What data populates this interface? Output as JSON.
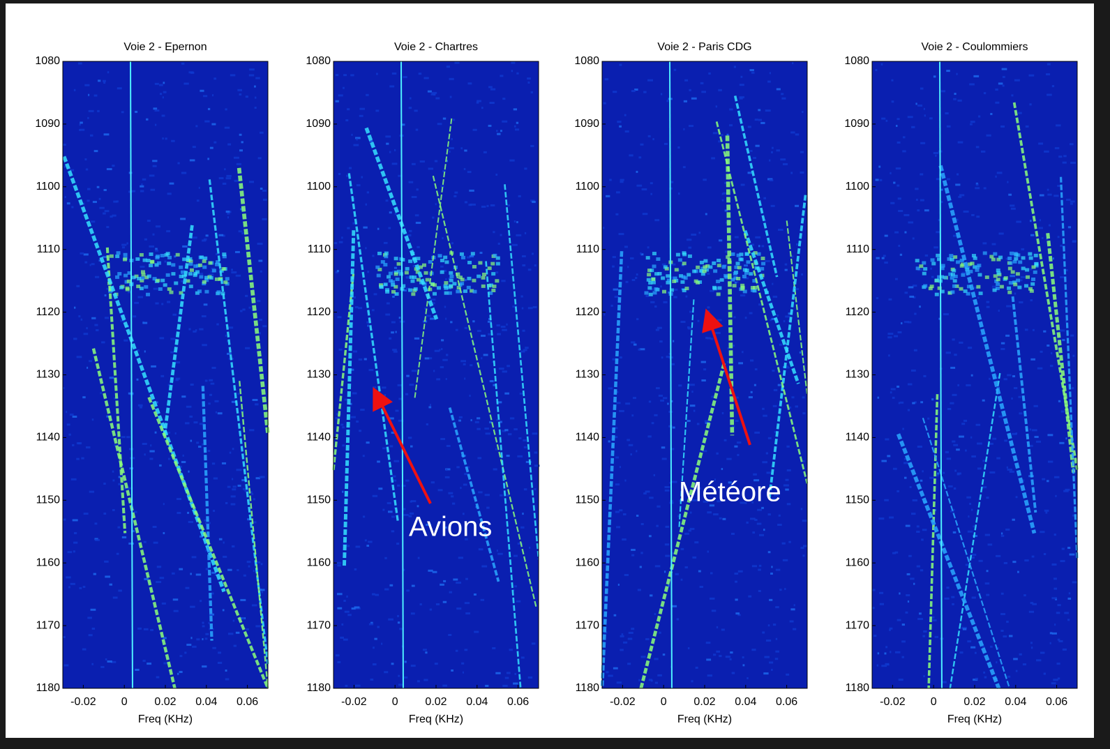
{
  "chart_data": [
    {
      "type": "spectrogram",
      "title": "Voie 2 - Epernon",
      "x_label": "Freq (KHz)",
      "xlim": [
        -0.03,
        0.07
      ],
      "xticks": [
        -0.02,
        0,
        0.02,
        0.04,
        0.06
      ],
      "ylim": [
        1080,
        1180
      ],
      "yticks": [
        1080,
        1090,
        1100,
        1110,
        1120,
        1130,
        1140,
        1150,
        1160,
        1170,
        1180
      ],
      "y_reversed": true
    },
    {
      "type": "spectrogram",
      "title": "Voie 2 - Chartres",
      "x_label": "Freq (KHz)",
      "xlim": [
        -0.03,
        0.07
      ],
      "xticks": [
        -0.02,
        0,
        0.02,
        0.04,
        0.06
      ],
      "ylim": [
        1080,
        1180
      ],
      "yticks": [
        1080,
        1090,
        1100,
        1110,
        1120,
        1130,
        1140,
        1150,
        1160,
        1170,
        1180
      ],
      "y_reversed": true,
      "annotation": "Avions"
    },
    {
      "type": "spectrogram",
      "title": "Voie 2 - Paris CDG",
      "x_label": "Freq (KHz)",
      "xlim": [
        -0.03,
        0.07
      ],
      "xticks": [
        -0.02,
        0,
        0.02,
        0.04,
        0.06
      ],
      "ylim": [
        1080,
        1180
      ],
      "yticks": [
        1080,
        1090,
        1100,
        1110,
        1120,
        1130,
        1140,
        1150,
        1160,
        1170,
        1180
      ],
      "y_reversed": true,
      "annotation": "Météore"
    },
    {
      "type": "spectrogram",
      "title": "Voie 2 - Coulommiers",
      "x_label": "Freq (KHz)",
      "xlim": [
        -0.03,
        0.07
      ],
      "xticks": [
        -0.02,
        0,
        0.02,
        0.04,
        0.06
      ],
      "ylim": [
        1080,
        1180
      ],
      "yticks": [
        1080,
        1090,
        1100,
        1110,
        1120,
        1130,
        1140,
        1150,
        1160,
        1170,
        1180
      ],
      "y_reversed": true
    }
  ]
}
